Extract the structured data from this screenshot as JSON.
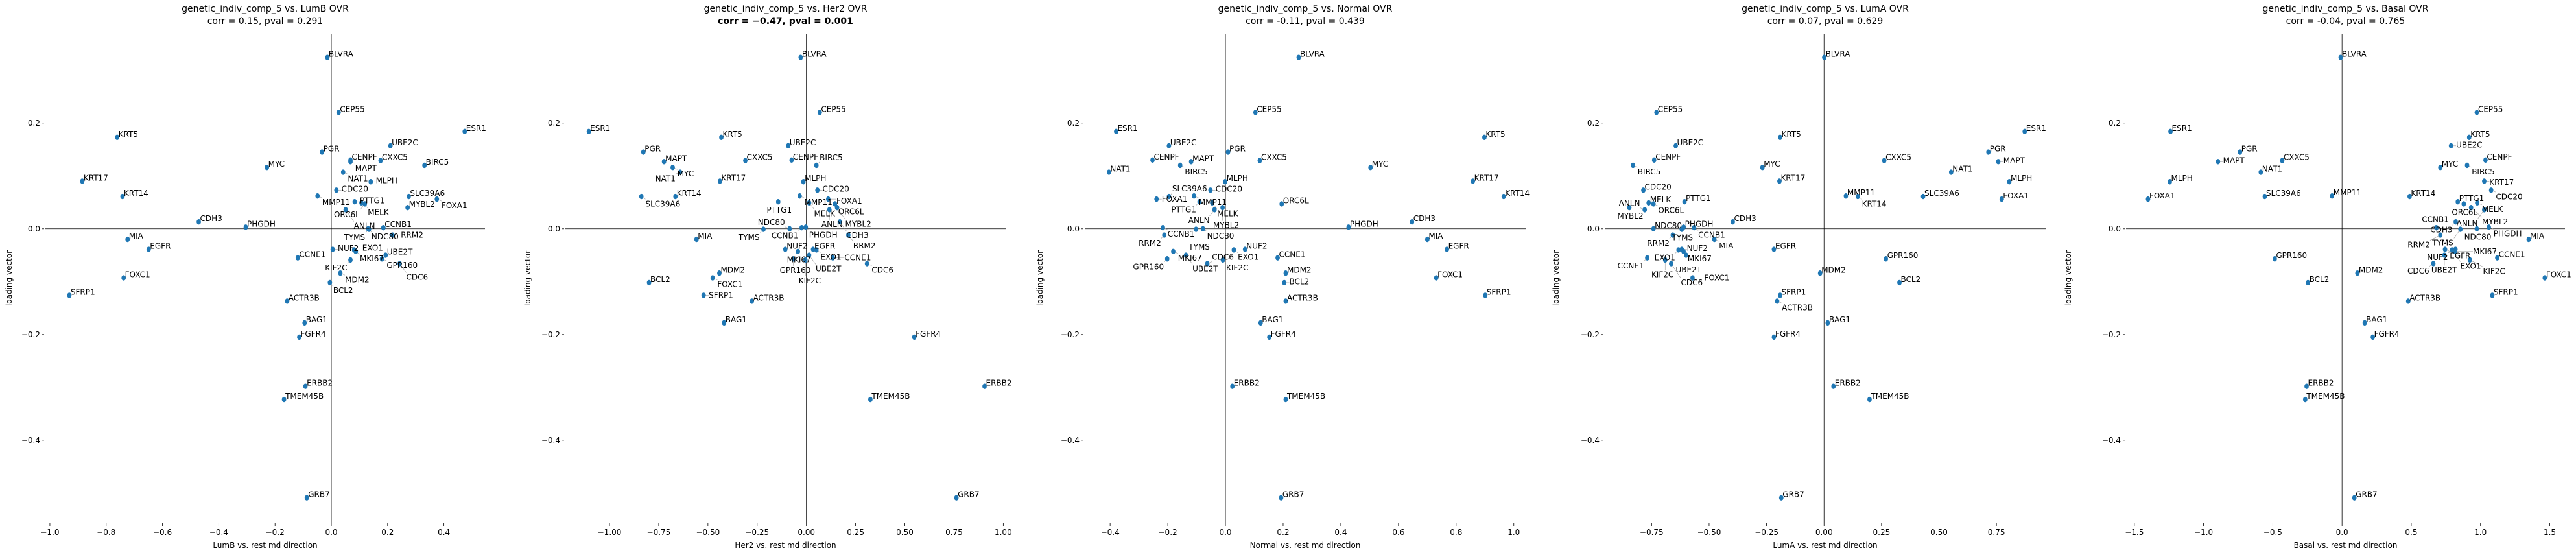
{
  "chart_data": [
    {
      "type": "scatter",
      "title": "genetic_indiv_comp_5 vs. LumB OVR",
      "subtitle": "corr = 0.15, pval = 0.291",
      "subtitle_bold": false,
      "xlabel": "LumB vs. rest md direction",
      "ylabel": "loading vector",
      "xlim": [
        -1.016,
        0.546
      ],
      "ylim": [
        -0.556,
        0.369
      ],
      "xticks": [
        -1.0,
        -0.8,
        -0.6,
        -0.4,
        -0.2,
        0.0,
        0.2,
        0.4
      ],
      "xtick_labels": [
        "−1.0",
        "−0.8",
        "−0.6",
        "−0.4",
        "−0.2",
        "0.0",
        "0.2",
        "0.4"
      ],
      "yticks": [
        0.2,
        0.0,
        -0.2,
        -0.4
      ],
      "ytick_labels": [
        "0.2",
        "0.0",
        "−0.2",
        "−0.4"
      ],
      "grid": false,
      "marker_color": "#1f77b4",
      "genes": [
        "BLVRA",
        "CEP55",
        "ESR1",
        "KRT5",
        "UBE2C",
        "PGR",
        "CENPF",
        "MAPT",
        "CXXC5",
        "BIRC5",
        "MYC",
        "NAT1",
        "KRT17",
        "MLPH",
        "CDC20",
        "MMP11",
        "KRT14",
        "SLC39A6",
        "FOXA1",
        "PTTG1",
        "MELK",
        "ORC6L",
        "MYBL2",
        "ANLN",
        "CDH3",
        "PHGDH",
        "CCNB1",
        "NDC80",
        "TYMS",
        "RRM2",
        "MIA",
        "EGFR",
        "NUF2",
        "EXO1",
        "MKI67",
        "UBE2T",
        "CCNE1",
        "GPR160",
        "KIF2C",
        "CDC6",
        "MDM2",
        "FOXC1",
        "BCL2",
        "SFRP1",
        "ACTR3B",
        "BAG1",
        "FGFR4",
        "ERBB2",
        "TMEM45B",
        "GRB7"
      ],
      "x": [
        -0.014,
        0.026,
        0.474,
        -0.761,
        0.21,
        -0.033,
        0.068,
        0.068,
        0.175,
        0.331,
        -0.229,
        0.042,
        -0.885,
        0.14,
        0.018,
        -0.049,
        -0.742,
        0.275,
        0.375,
        0.083,
        0.107,
        0.119,
        0.271,
        0.051,
        -0.471,
        -0.304,
        0.185,
        0.131,
        0.134,
        0.217,
        -0.724,
        -0.649,
        0.005,
        0.081,
        0.087,
        0.193,
        -0.119,
        0.18,
        0.068,
        0.243,
        0.032,
        -0.738,
        -0.005,
        -0.931,
        -0.157,
        -0.095,
        -0.114,
        -0.092,
        -0.168,
        -0.087
      ],
      "y": [
        0.324,
        0.22,
        0.184,
        0.173,
        0.157,
        0.145,
        0.13,
        0.127,
        0.129,
        0.12,
        0.116,
        0.107,
        0.09,
        0.089,
        0.073,
        0.062,
        0.061,
        0.061,
        0.056,
        0.051,
        0.049,
        0.047,
        0.04,
        0.036,
        0.013,
        0.003,
        0.002,
        0.0,
        -0.001,
        -0.012,
        -0.02,
        -0.039,
        -0.039,
        -0.04,
        -0.043,
        -0.05,
        -0.055,
        -0.057,
        -0.059,
        -0.066,
        -0.084,
        -0.093,
        -0.102,
        -0.126,
        -0.137,
        -0.178,
        -0.205,
        -0.298,
        -0.323,
        -0.509
      ]
    },
    {
      "type": "scatter",
      "title": "genetic_indiv_comp_5 vs. Her2 OVR",
      "subtitle": "corr = −0.47, pval = 0.001",
      "subtitle_bold": true,
      "xlabel": "Her2 vs. rest md direction",
      "ylabel": "loading vector",
      "xlim": [
        -1.224,
        1.012
      ],
      "ylim": [
        -0.556,
        0.369
      ],
      "xticks": [
        -1.0,
        -0.75,
        -0.5,
        -0.25,
        0.0,
        0.25,
        0.5,
        0.75,
        1.0
      ],
      "xtick_labels": [
        "−1.00",
        "−0.75",
        "−0.50",
        "−0.25",
        "0.00",
        "0.25",
        "0.50",
        "0.75",
        "1.00"
      ],
      "yticks": [
        0.2,
        0.0,
        -0.2,
        -0.4
      ],
      "ytick_labels": [
        "0.2",
        "0.0",
        "−0.2",
        "−0.4"
      ],
      "grid": false,
      "marker_color": "#1f77b4",
      "genes": [
        "BLVRA",
        "CEP55",
        "ESR1",
        "KRT5",
        "UBE2C",
        "PGR",
        "CENPF",
        "MAPT",
        "CXXC5",
        "BIRC5",
        "MYC",
        "NAT1",
        "KRT17",
        "MLPH",
        "CDC20",
        "MMP11",
        "KRT14",
        "SLC39A6",
        "FOXA1",
        "PTTG1",
        "MELK",
        "ORC6L",
        "MYBL2",
        "ANLN",
        "CDH3",
        "PHGDH",
        "CCNB1",
        "NDC80",
        "TYMS",
        "RRM2",
        "MIA",
        "EGFR",
        "NUF2",
        "EXO1",
        "MKI67",
        "UBE2T",
        "CCNE1",
        "GPR160",
        "KIF2C",
        "CDC6",
        "MDM2",
        "FOXC1",
        "BCL2",
        "SFRP1",
        "ACTR3B",
        "BAG1",
        "FGFR4",
        "ERBB2",
        "TMEM45B",
        "GRB7"
      ],
      "x": [
        -0.029,
        0.068,
        -1.105,
        -0.432,
        -0.092,
        -0.828,
        -0.075,
        -0.723,
        -0.31,
        0.051,
        -0.679,
        -0.641,
        -0.439,
        -0.015,
        0.056,
        -0.034,
        -0.665,
        -0.838,
        0.111,
        -0.143,
        0.014,
        0.145,
        0.156,
        0.117,
        0.17,
        -0.003,
        -0.024,
        -0.085,
        -0.218,
        0.213,
        -0.558,
        0.034,
        -0.107,
        0.051,
        -0.043,
        0.014,
        0.134,
        -0.066,
        -0.005,
        0.308,
        -0.442,
        -0.476,
        -0.799,
        -0.522,
        -0.277,
        -0.418,
        0.548,
        0.905,
        0.325,
        0.762
      ],
      "y": [
        0.324,
        0.22,
        0.184,
        0.173,
        0.157,
        0.145,
        0.13,
        0.127,
        0.129,
        0.12,
        0.116,
        0.107,
        0.09,
        0.089,
        0.073,
        0.062,
        0.061,
        0.061,
        0.056,
        0.051,
        0.049,
        0.047,
        0.04,
        0.036,
        0.013,
        0.003,
        0.002,
        0.0,
        -0.001,
        -0.012,
        -0.02,
        -0.039,
        -0.039,
        -0.04,
        -0.043,
        -0.05,
        -0.055,
        -0.057,
        -0.059,
        -0.066,
        -0.084,
        -0.093,
        -0.102,
        -0.126,
        -0.137,
        -0.178,
        -0.205,
        -0.298,
        -0.323,
        -0.509
      ]
    },
    {
      "type": "scatter",
      "title": "genetic_indiv_comp_5 vs. Normal OVR",
      "subtitle": "corr = -0.11, pval = 0.439",
      "subtitle_bold": false,
      "xlabel": "Normal vs. rest md direction",
      "ylabel": "loading vector",
      "xlim": [
        -0.488,
        1.041
      ],
      "ylim": [
        -0.556,
        0.369
      ],
      "xticks": [
        -0.4,
        -0.2,
        0.0,
        0.2,
        0.4,
        0.6,
        0.8,
        1.0
      ],
      "xtick_labels": [
        "−0.4",
        "−0.2",
        "0.0",
        "0.2",
        "0.4",
        "0.6",
        "0.8",
        "1.0"
      ],
      "yticks": [
        0.2,
        0.0,
        -0.2,
        -0.4
      ],
      "ytick_labels": [
        "0.2",
        "0.0",
        "−0.2",
        "−0.4"
      ],
      "grid": false,
      "marker_color": "#1f77b4",
      "genes": [
        "BLVRA",
        "CEP55",
        "ESR1",
        "KRT5",
        "UBE2C",
        "PGR",
        "CENPF",
        "MAPT",
        "CXXC5",
        "BIRC5",
        "MYC",
        "NAT1",
        "KRT17",
        "MLPH",
        "CDC20",
        "MMP11",
        "KRT14",
        "SLC39A6",
        "FOXA1",
        "PTTG1",
        "MELK",
        "ORC6L",
        "MYBL2",
        "ANLN",
        "CDH3",
        "PHGDH",
        "CCNB1",
        "NDC80",
        "TYMS",
        "RRM2",
        "MIA",
        "EGFR",
        "NUF2",
        "EXO1",
        "MKI67",
        "UBE2T",
        "CCNE1",
        "GPR160",
        "KIF2C",
        "CDC6",
        "MDM2",
        "FOXC1",
        "BCL2",
        "SFRP1",
        "ACTR3B",
        "BAG1",
        "FGFR4",
        "ERBB2",
        "TMEM45B",
        "GRB7"
      ],
      "x": [
        0.254,
        0.104,
        -0.379,
        0.898,
        -0.196,
        0.009,
        -0.253,
        -0.119,
        0.119,
        -0.157,
        0.503,
        -0.404,
        0.858,
        -0.001,
        -0.052,
        -0.109,
        0.965,
        -0.196,
        -0.239,
        -0.09,
        -0.046,
        0.195,
        -0.01,
        -0.038,
        0.647,
        0.427,
        -0.217,
        -0.078,
        -0.102,
        -0.212,
        0.7,
        0.768,
        0.068,
        0.029,
        -0.181,
        -0.137,
        0.181,
        -0.202,
        -0.009,
        -0.063,
        0.209,
        0.731,
        0.204,
        0.901,
        0.209,
        0.122,
        0.152,
        0.024,
        0.209,
        0.193
      ],
      "y": [
        0.324,
        0.22,
        0.184,
        0.173,
        0.157,
        0.145,
        0.13,
        0.127,
        0.129,
        0.12,
        0.116,
        0.107,
        0.09,
        0.089,
        0.073,
        0.062,
        0.061,
        0.061,
        0.056,
        0.051,
        0.049,
        0.047,
        0.04,
        0.036,
        0.013,
        0.003,
        0.002,
        0.0,
        -0.001,
        -0.012,
        -0.02,
        -0.039,
        -0.039,
        -0.04,
        -0.043,
        -0.05,
        -0.055,
        -0.057,
        -0.059,
        -0.066,
        -0.084,
        -0.093,
        -0.102,
        -0.126,
        -0.137,
        -0.178,
        -0.205,
        -0.298,
        -0.323,
        -0.509
      ]
    },
    {
      "type": "scatter",
      "title": "genetic_indiv_comp_5 vs. LumA OVR",
      "subtitle": "corr = 0.07, pval = 0.629",
      "subtitle_bold": false,
      "xlabel": "LumA vs. rest md direction",
      "ylabel": "loading vector",
      "xlim": [
        -0.954,
        0.964
      ],
      "ylim": [
        -0.556,
        0.369
      ],
      "xticks": [
        -0.75,
        -0.5,
        -0.25,
        0.0,
        0.25,
        0.5,
        0.75
      ],
      "xtick_labels": [
        "−0.75",
        "−0.50",
        "−0.25",
        "0.00",
        "0.25",
        "0.50",
        "0.75"
      ],
      "yticks": [
        0.2,
        0.0,
        -0.2,
        -0.4
      ],
      "ytick_labels": [
        "0.2",
        "0.0",
        "−0.2",
        "−0.4"
      ],
      "grid": false,
      "marker_color": "#1f77b4",
      "genes": [
        "BLVRA",
        "CEP55",
        "ESR1",
        "KRT5",
        "UBE2C",
        "PGR",
        "CENPF",
        "MAPT",
        "CXXC5",
        "BIRC5",
        "MYC",
        "NAT1",
        "KRT17",
        "MLPH",
        "CDC20",
        "MMP11",
        "KRT14",
        "SLC39A6",
        "FOXA1",
        "PTTG1",
        "MELK",
        "ORC6L",
        "MYBL2",
        "ANLN",
        "CDH3",
        "PHGDH",
        "CCNB1",
        "NDC80",
        "TYMS",
        "RRM2",
        "MIA",
        "EGFR",
        "NUF2",
        "EXO1",
        "MKI67",
        "UBE2T",
        "CCNE1",
        "GPR160",
        "KIF2C",
        "CDC6",
        "MDM2",
        "FOXC1",
        "BCL2",
        "SFRP1",
        "ACTR3B",
        "BAG1",
        "FGFR4",
        "ERBB2",
        "TMEM45B",
        "GRB7"
      ],
      "x": [
        0.001,
        -0.729,
        0.873,
        -0.191,
        -0.645,
        0.715,
        -0.739,
        0.758,
        0.262,
        -0.831,
        -0.268,
        0.553,
        -0.194,
        0.806,
        -0.786,
        0.095,
        0.147,
        0.431,
        0.773,
        -0.607,
        -0.763,
        -0.742,
        -0.847,
        -0.78,
        -0.397,
        -0.611,
        -0.565,
        -0.742,
        -0.619,
        -0.658,
        -0.477,
        -0.218,
        -0.619,
        -0.633,
        -0.611,
        -0.6,
        -0.769,
        0.269,
        -0.691,
        -0.665,
        -0.017,
        -0.572,
        0.328,
        -0.191,
        -0.204,
        0.016,
        -0.218,
        0.041,
        0.198,
        -0.186
      ],
      "y": [
        0.324,
        0.22,
        0.184,
        0.173,
        0.157,
        0.145,
        0.13,
        0.127,
        0.129,
        0.12,
        0.116,
        0.107,
        0.09,
        0.089,
        0.073,
        0.062,
        0.061,
        0.061,
        0.056,
        0.051,
        0.049,
        0.047,
        0.04,
        0.036,
        0.013,
        0.003,
        0.002,
        0.0,
        -0.001,
        -0.012,
        -0.02,
        -0.039,
        -0.039,
        -0.04,
        -0.043,
        -0.05,
        -0.055,
        -0.057,
        -0.059,
        -0.066,
        -0.084,
        -0.093,
        -0.102,
        -0.126,
        -0.137,
        -0.178,
        -0.205,
        -0.298,
        -0.323,
        -0.509
      ]
    },
    {
      "type": "scatter",
      "title": "genetic_indiv_comp_5 vs. Basal OVR",
      "subtitle": "corr = -0.04, pval = 0.765",
      "subtitle_bold": false,
      "xlabel": "Basal vs. rest md direction",
      "ylabel": "loading vector",
      "xlim": [
        -1.56,
        1.61
      ],
      "ylim": [
        -0.556,
        0.369
      ],
      "xticks": [
        -1.5,
        -1.0,
        -0.5,
        0.0,
        0.5,
        1.0,
        1.5
      ],
      "xtick_labels": [
        "−1.5",
        "−1.0",
        "−0.5",
        "0.0",
        "0.5",
        "1.0",
        "1.5"
      ],
      "yticks": [
        0.2,
        0.0,
        -0.2,
        -0.4
      ],
      "ytick_labels": [
        "0.2",
        "0.0",
        "−0.2",
        "−0.4"
      ],
      "grid": false,
      "marker_color": "#1f77b4",
      "genes": [
        "BLVRA",
        "CEP55",
        "ESR1",
        "KRT5",
        "UBE2C",
        "PGR",
        "CENPF",
        "MAPT",
        "CXXC5",
        "BIRC5",
        "MYC",
        "NAT1",
        "KRT17",
        "MLPH",
        "CDC20",
        "MMP11",
        "KRT14",
        "SLC39A6",
        "FOXA1",
        "PTTG1",
        "MELK",
        "ORC6L",
        "MYBL2",
        "ANLN",
        "CDH3",
        "PHGDH",
        "CCNB1",
        "NDC80",
        "TYMS",
        "RRM2",
        "MIA",
        "EGFR",
        "NUF2",
        "EXO1",
        "MKI67",
        "UBE2T",
        "CCNE1",
        "GPR160",
        "KIF2C",
        "CDC6",
        "MDM2",
        "FOXC1",
        "BCL2",
        "SFRP1",
        "ACTR3B",
        "BAG1",
        "FGFR4",
        "ERBB2",
        "TMEM45B",
        "GRB7"
      ],
      "x": [
        -0.01,
        0.973,
        -1.239,
        0.918,
        0.787,
        -0.737,
        1.036,
        -0.896,
        -0.432,
        0.903,
        0.71,
        -0.587,
        1.027,
        -1.244,
        1.077,
        -0.072,
        0.488,
        -0.558,
        -1.401,
        0.836,
        0.976,
        0.879,
        0.932,
        1.027,
        0.821,
        1.06,
        0.681,
        0.973,
        0.855,
        0.71,
        1.348,
        0.744,
        0.819,
        0.795,
        0.814,
        0.739,
        1.121,
        -0.486,
        0.923,
        0.659,
        0.111,
        1.464,
        -0.246,
        1.085,
        0.478,
        0.164,
        0.222,
        -0.256,
        -0.266,
        0.089
      ],
      "y": [
        0.324,
        0.22,
        0.184,
        0.173,
        0.157,
        0.145,
        0.13,
        0.127,
        0.129,
        0.12,
        0.116,
        0.107,
        0.09,
        0.089,
        0.073,
        0.062,
        0.061,
        0.061,
        0.056,
        0.051,
        0.049,
        0.047,
        0.04,
        0.036,
        0.013,
        0.003,
        0.002,
        0.0,
        -0.001,
        -0.012,
        -0.02,
        -0.039,
        -0.039,
        -0.04,
        -0.043,
        -0.05,
        -0.055,
        -0.057,
        -0.059,
        -0.066,
        -0.084,
        -0.093,
        -0.102,
        -0.126,
        -0.137,
        -0.178,
        -0.205,
        -0.298,
        -0.323,
        -0.509
      ]
    }
  ]
}
